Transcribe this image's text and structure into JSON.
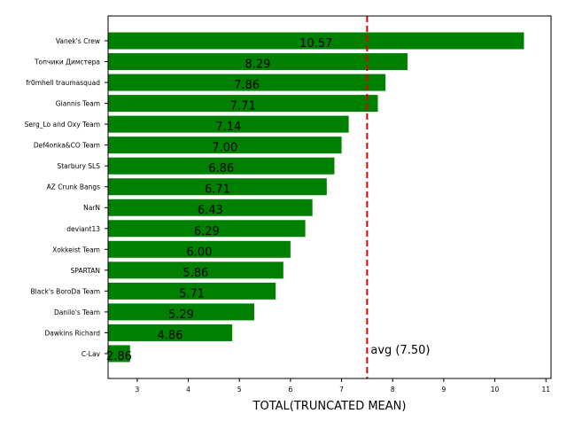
{
  "chart_data": {
    "type": "bar",
    "orientation": "horizontal",
    "title": "",
    "xlabel": "TOTAL(TRUNCATED MEAN)",
    "ylabel": "",
    "xlim": [
      2.43,
      11.1
    ],
    "xticks": [
      3,
      4,
      5,
      6,
      7,
      8,
      9,
      10,
      11
    ],
    "categories": [
      "Vanek's Crew",
      "Топчики Димстера",
      "fr0mhell traumasquad",
      "Giannis Team",
      "Serg_Lo and Oxy Team",
      "Def4onka&CO Team",
      "Starbury SLS",
      "AZ Crunk Bangs",
      "NarN",
      "deviant13",
      "Xokkeist Team",
      "SPARTAN",
      "Black's BoroDa Team",
      "Danilo's Team",
      "Dawkins Richard",
      "C-Lav"
    ],
    "values": [
      10.57,
      8.29,
      7.86,
      7.71,
      7.14,
      7.0,
      6.86,
      6.71,
      6.43,
      6.29,
      6.0,
      5.86,
      5.71,
      5.29,
      4.86,
      2.86
    ],
    "value_labels": [
      "10.57",
      "8.29",
      "7.86",
      "7.71",
      "7.14",
      "7.00",
      "6.86",
      "6.71",
      "6.43",
      "6.29",
      "6.00",
      "5.86",
      "5.71",
      "5.29",
      "4.86",
      "2.86"
    ],
    "bar_color": "#008000",
    "reference_line": {
      "value": 7.5,
      "label": "avg (7.50)",
      "color": "#e00000",
      "style": "dashed"
    },
    "grid": false,
    "legend": null
  }
}
